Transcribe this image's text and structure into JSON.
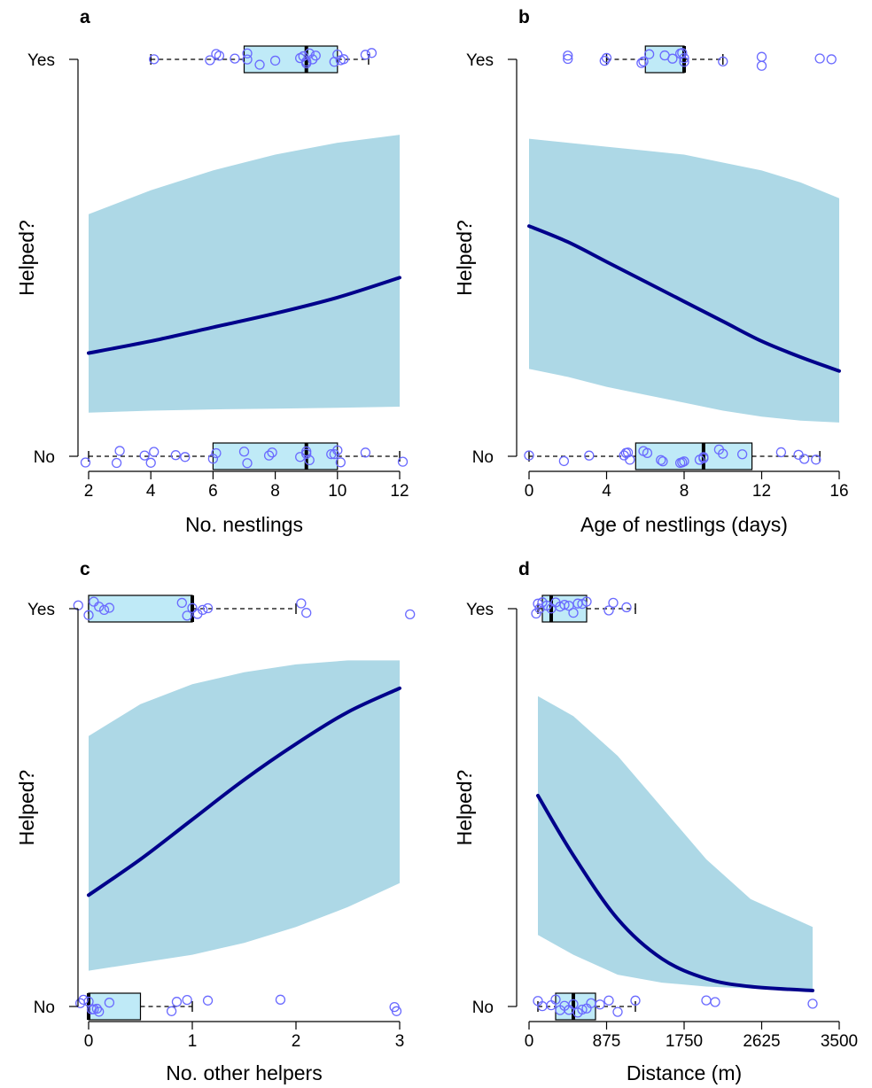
{
  "colors": {
    "ci_band": "#add8e6",
    "fit_line": "#00008b",
    "points": "#6a6aff",
    "box_fill": "#bfeaf7"
  },
  "chart_data": [
    {
      "panel": "a",
      "type": "line",
      "xlabel": "No. nestlings",
      "ylabel": "Helped?",
      "y_categories": [
        "No",
        "Yes"
      ],
      "xlim": [
        2,
        12
      ],
      "xticks": [
        "2",
        "4",
        "6",
        "8",
        "10",
        "12"
      ],
      "xtick_values": [
        2,
        4,
        6,
        8,
        10,
        12
      ],
      "fit": {
        "x": [
          2,
          4,
          6,
          8,
          10,
          12
        ],
        "y": [
          0.26,
          0.29,
          0.325,
          0.36,
          0.4,
          0.45
        ]
      },
      "ci_lower": {
        "x": [
          2,
          4,
          6,
          8,
          10,
          12
        ],
        "y": [
          0.11,
          0.115,
          0.118,
          0.12,
          0.122,
          0.125
        ]
      },
      "ci_upper": {
        "x": [
          2,
          4,
          6,
          8,
          10,
          12
        ],
        "y": [
          0.61,
          0.67,
          0.72,
          0.76,
          0.79,
          0.81
        ]
      },
      "box_yes": {
        "min": 4,
        "q1": 7,
        "median": 9,
        "q3": 10,
        "max": 11
      },
      "box_no": {
        "min": 2,
        "q1": 6,
        "median": 9,
        "q3": 10,
        "max": 12
      },
      "points_yes": [
        4.1,
        5.9,
        6.1,
        6.2,
        6.7,
        7.1,
        7.1,
        7.5,
        8,
        8.8,
        8.9,
        9,
        9,
        9.1,
        9.2,
        9.3,
        9.9,
        10,
        10.1,
        10.2,
        10.9,
        11.1
      ],
      "points_no": [
        1.9,
        2.9,
        3,
        3.8,
        4,
        4.1,
        4.8,
        5.1,
        6,
        6.1,
        7,
        7.1,
        7.8,
        7.9,
        8.8,
        9,
        9,
        9.1,
        9.8,
        9.9,
        10,
        10.1,
        10.9,
        12.1
      ]
    },
    {
      "panel": "b",
      "type": "line",
      "xlabel": "Age of nestlings (days)",
      "ylabel": "Helped?",
      "y_categories": [
        "No",
        "Yes"
      ],
      "xlim": [
        0,
        16
      ],
      "xticks": [
        "0",
        "4",
        "8",
        "12",
        "16"
      ],
      "xtick_values": [
        0,
        4,
        8,
        12,
        16
      ],
      "fit": {
        "x": [
          0,
          2,
          4,
          6,
          8,
          10,
          12,
          14,
          16
        ],
        "y": [
          0.58,
          0.54,
          0.49,
          0.44,
          0.39,
          0.34,
          0.29,
          0.25,
          0.215
        ]
      },
      "ci_lower": {
        "x": [
          0,
          2,
          4,
          6,
          8,
          10,
          12,
          14,
          16
        ],
        "y": [
          0.22,
          0.2,
          0.175,
          0.155,
          0.135,
          0.115,
          0.1,
          0.09,
          0.085
        ]
      },
      "ci_upper": {
        "x": [
          0,
          2,
          4,
          6,
          8,
          10,
          12,
          14,
          16
        ],
        "y": [
          0.8,
          0.79,
          0.78,
          0.77,
          0.76,
          0.74,
          0.72,
          0.69,
          0.65
        ]
      },
      "box_yes": {
        "min": 4,
        "q1": 6,
        "median": 8,
        "q3": 8,
        "max": 10
      },
      "box_no": {
        "min": 0,
        "q1": 5.5,
        "median": 9,
        "q3": 11.5,
        "max": 15
      },
      "points_yes": [
        2,
        2,
        3.9,
        4,
        5.8,
        5.9,
        6.2,
        7,
        7.4,
        7.8,
        7.9,
        8,
        8,
        10,
        12,
        12,
        15,
        15.6
      ],
      "points_no": [
        0,
        1.8,
        3.1,
        4.9,
        5,
        5.1,
        5.2,
        5.9,
        6.1,
        6.8,
        6.9,
        7.8,
        7.9,
        8,
        8.8,
        9,
        9,
        9.8,
        10,
        11,
        13,
        13.9,
        14.2,
        14.8
      ],
      "point_offsets_yes": [
        0,
        0,
        0,
        0,
        0,
        0,
        0,
        0,
        0,
        0,
        0,
        0,
        0,
        0,
        0,
        0,
        0,
        0
      ],
      "point_offsets_no": [
        0,
        0,
        0,
        0,
        0,
        0,
        0,
        0,
        0,
        0,
        0,
        0,
        0,
        0,
        0,
        0,
        0,
        0,
        0,
        0,
        0,
        0,
        0,
        0
      ]
    },
    {
      "panel": "c",
      "type": "line",
      "xlabel": "No. other helpers",
      "ylabel": "Helped?",
      "y_categories": [
        "No",
        "Yes"
      ],
      "xlim": [
        0,
        3
      ],
      "xticks": [
        "0",
        "1",
        "2",
        "3"
      ],
      "xtick_values": [
        0,
        1,
        2,
        3
      ],
      "fit": {
        "x": [
          0,
          0.5,
          1,
          1.5,
          2,
          2.5,
          3
        ],
        "y": [
          0.28,
          0.37,
          0.47,
          0.57,
          0.66,
          0.74,
          0.8
        ]
      },
      "ci_lower": {
        "x": [
          0,
          0.5,
          1,
          1.5,
          2,
          2.5,
          3
        ],
        "y": [
          0.09,
          0.11,
          0.13,
          0.16,
          0.2,
          0.25,
          0.31
        ]
      },
      "ci_upper": {
        "x": [
          0,
          0.5,
          1,
          1.5,
          2,
          2.5,
          3
        ],
        "y": [
          0.68,
          0.76,
          0.81,
          0.84,
          0.86,
          0.87,
          0.87
        ]
      },
      "box_yes": {
        "min": 0,
        "q1": 0,
        "median": 1,
        "q3": 1,
        "max": 2
      },
      "box_no": {
        "min": 0,
        "q1": 0,
        "median": 0,
        "q3": 0.5,
        "max": 1
      },
      "points_yes": [
        -0.1,
        0,
        0.05,
        0.1,
        0.15,
        0.2,
        0.9,
        0.95,
        1,
        1.05,
        1.1,
        1.15,
        2.05,
        2.1,
        3.1
      ],
      "points_no": [
        -0.08,
        -0.05,
        0,
        0.03,
        0.05,
        0.08,
        0.1,
        0.2,
        0.8,
        0.85,
        0.95,
        1.15,
        1.85,
        2.95,
        2.97
      ]
    },
    {
      "panel": "d",
      "type": "line",
      "xlabel": "Distance (m)",
      "ylabel": "Helped?",
      "y_categories": [
        "No",
        "Yes"
      ],
      "xlim": [
        0,
        3500
      ],
      "xticks": [
        "0",
        "875",
        "1750",
        "2625",
        "3500"
      ],
      "xtick_values": [
        0,
        875,
        1750,
        2625,
        3500
      ],
      "fit": {
        "x": [
          100,
          500,
          1000,
          1500,
          2000,
          2500,
          3200
        ],
        "y": [
          0.53,
          0.38,
          0.22,
          0.12,
          0.07,
          0.05,
          0.04
        ]
      },
      "ci_lower": {
        "x": [
          100,
          500,
          1000,
          1500,
          2000,
          2500,
          3200
        ],
        "y": [
          0.18,
          0.13,
          0.08,
          0.06,
          0.05,
          0.045,
          0.04
        ]
      },
      "ci_upper": {
        "x": [
          100,
          500,
          1000,
          1500,
          2000,
          2500,
          3200
        ],
        "y": [
          0.78,
          0.73,
          0.63,
          0.5,
          0.37,
          0.27,
          0.2
        ]
      },
      "box_yes": {
        "min": 100,
        "q1": 150,
        "median": 250,
        "q3": 650,
        "max": 1200
      },
      "box_no": {
        "min": 100,
        "q1": 300,
        "median": 500,
        "q3": 750,
        "max": 1200
      },
      "points_yes": [
        80,
        100,
        120,
        150,
        200,
        250,
        300,
        350,
        400,
        450,
        500,
        550,
        600,
        650,
        900,
        950,
        1100
      ],
      "points_no": [
        100,
        150,
        250,
        300,
        350,
        400,
        450,
        500,
        550,
        600,
        650,
        700,
        800,
        900,
        1000,
        1200,
        2000,
        2100,
        3200
      ]
    }
  ]
}
